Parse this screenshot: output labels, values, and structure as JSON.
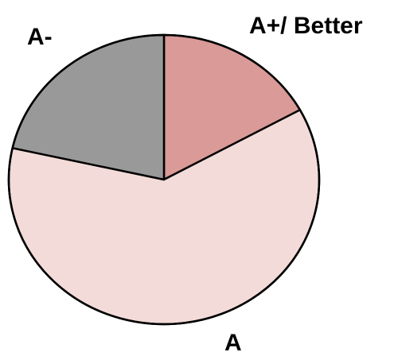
{
  "chart_data": {
    "type": "pie",
    "title": "",
    "labels": [
      "A+/ Better",
      "A",
      "A-"
    ],
    "values": [
      17,
      61.5,
      21.5
    ],
    "colors": [
      "#d99a98",
      "#f2dbd8",
      "#999999"
    ],
    "start_angle_deg": 0,
    "direction": "clockwise",
    "legend": "none",
    "stroke_color": "#000000"
  }
}
